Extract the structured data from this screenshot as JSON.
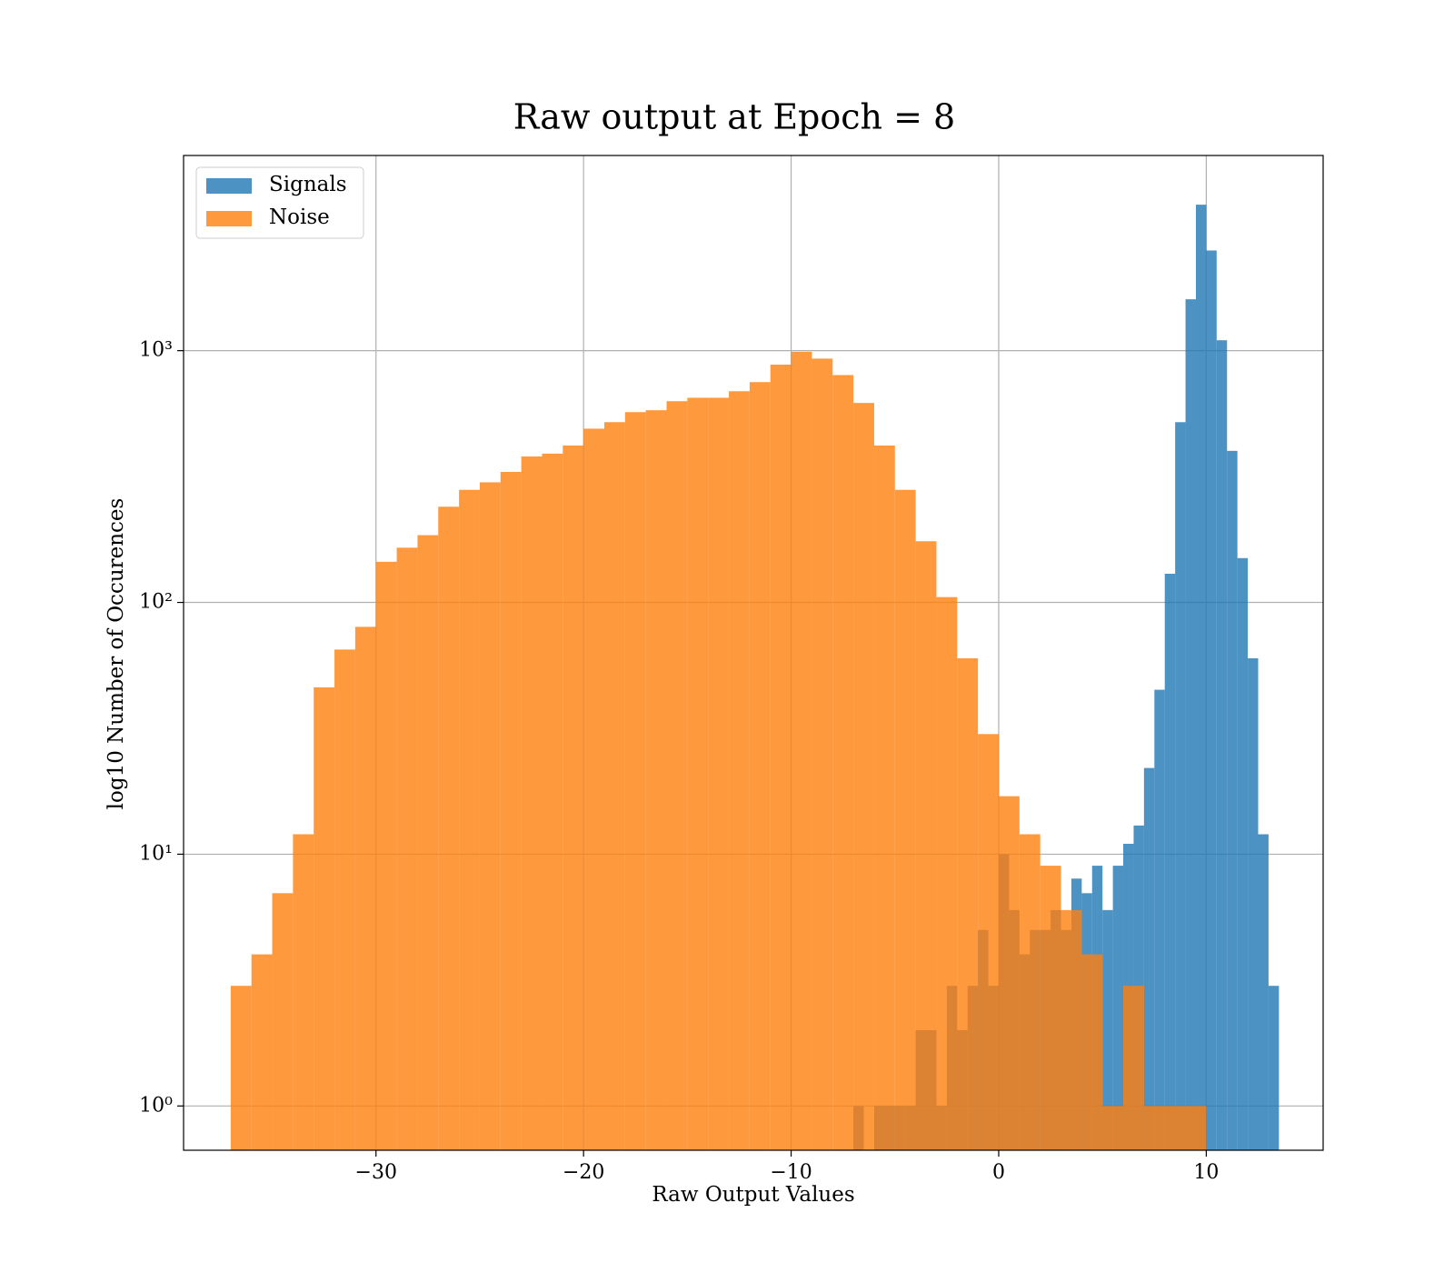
{
  "chart_data": {
    "type": "histogram",
    "title": "Raw output at Epoch = 8",
    "x_label": "Raw Output Values",
    "y_label": "log10 Number of Occurences",
    "log_y": true,
    "grid": true,
    "legend": "upper left",
    "xlim": [
      -39.27,
      15.63
    ],
    "ylim": [
      0.667,
      5960
    ],
    "xticks": [
      {
        "value": -30,
        "label": "−30"
      },
      {
        "value": -20,
        "label": "−20"
      },
      {
        "value": -10,
        "label": "−10"
      },
      0,
      10
    ],
    "yticks": [
      {
        "value": 1,
        "label": "10⁰"
      },
      {
        "value": 10,
        "label": "10¹"
      },
      {
        "value": 100,
        "label": "10²"
      },
      {
        "value": 1000,
        "label": "10³"
      }
    ],
    "series": [
      {
        "name": "Signals",
        "color": "#1f77b4",
        "bins": [
          -7,
          -6.5,
          -6,
          -5.5,
          -5,
          -4.5,
          -4,
          -3.5,
          -3,
          -2.5,
          -2,
          -1.5,
          -1,
          -0.5,
          0,
          0.5,
          1,
          1.5,
          2,
          2.5,
          3,
          3.5,
          4,
          4.5,
          5,
          5.5,
          6,
          6.5,
          7,
          7.5,
          8,
          8.5,
          9,
          9.5,
          10,
          10.5,
          11,
          11.5,
          12,
          12.5,
          13,
          13.5
        ],
        "values": [
          1,
          0,
          1,
          1,
          1,
          1,
          2,
          2,
          1,
          3,
          2,
          3,
          5,
          3,
          10,
          6,
          4,
          5,
          5,
          6,
          5,
          8,
          7,
          9,
          6,
          9,
          11,
          13,
          22,
          45,
          130,
          520,
          1600,
          3800,
          2500,
          1100,
          400,
          150,
          60,
          12,
          3
        ]
      },
      {
        "name": "Noise",
        "color": "#ff7f0e",
        "bins": [
          -37,
          -36,
          -35,
          -34,
          -33,
          -32,
          -31,
          -30,
          -29,
          -28,
          -27,
          -26,
          -25,
          -24,
          -23,
          -22,
          -21,
          -20,
          -19,
          -18,
          -17,
          -16,
          -15,
          -14,
          -13,
          -12,
          -11,
          -10,
          -9,
          -8,
          -7,
          -6,
          -5,
          -4,
          -3,
          -2,
          -1,
          0,
          1,
          2,
          3,
          4,
          5,
          6,
          7,
          8,
          9,
          10
        ],
        "values": [
          3,
          4,
          7,
          12,
          46,
          65,
          80,
          145,
          165,
          185,
          240,
          280,
          300,
          330,
          380,
          390,
          420,
          490,
          520,
          570,
          580,
          630,
          650,
          650,
          690,
          750,
          880,
          990,
          930,
          800,
          620,
          420,
          280,
          175,
          105,
          60,
          30,
          17,
          12,
          9,
          6,
          4,
          1,
          3,
          1,
          1,
          1
        ]
      }
    ]
  }
}
